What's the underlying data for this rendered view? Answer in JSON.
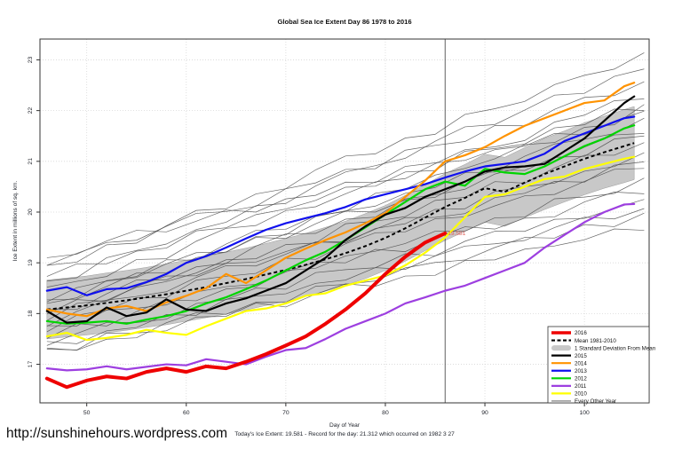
{
  "page": {
    "footer_url": "http://sunshinehours.wordpress.com"
  },
  "chart_data": {
    "type": "line",
    "title": "Global Sea Ice Extent Day 86 1978 to 2016",
    "xlabel": "Day of Year",
    "ylabel": "Ice Extent in millions of sq. km.",
    "subtitle": "Today's Ice Extent: 19.581  - Record for the day: 21.312 which occurred on 1982 3 27",
    "x_ticks": [
      50,
      60,
      70,
      80,
      90,
      100
    ],
    "y_ticks": [
      17,
      18,
      19,
      20,
      21,
      22,
      23
    ],
    "x_range": [
      45.3,
      106.5
    ],
    "y_range": [
      16.24,
      23.41
    ],
    "grid": "dotted",
    "grid_color": "#d8d8d8",
    "marker_day": 86,
    "annotation": {
      "text": "19.581",
      "day": 86,
      "value": 19.581,
      "color": "#e0605a"
    },
    "days": [
      46,
      48,
      50,
      52,
      54,
      56,
      58,
      60,
      62,
      64,
      66,
      68,
      70,
      72,
      74,
      76,
      78,
      80,
      82,
      84,
      86,
      88,
      90,
      92,
      94,
      96,
      98,
      100,
      102,
      104,
      105
    ],
    "mean": {
      "name": "Mean 1981-2010",
      "color": "#000000",
      "dashed": true,
      "values": [
        18.08,
        18.12,
        18.16,
        18.21,
        18.26,
        18.32,
        18.38,
        18.45,
        18.52,
        18.6,
        18.68,
        18.77,
        18.86,
        18.96,
        19.07,
        19.19,
        19.33,
        19.49,
        19.68,
        19.89,
        20.1,
        20.28,
        20.47,
        20.4,
        20.58,
        20.75,
        20.9,
        21.05,
        21.18,
        21.3,
        21.36
      ]
    },
    "std_dev": {
      "name": "1 Standard Deviation From Mean",
      "color": "#c8c8c8",
      "values": [
        0.58,
        0.58,
        0.58,
        0.59,
        0.59,
        0.59,
        0.6,
        0.6,
        0.6,
        0.61,
        0.61,
        0.61,
        0.62,
        0.62,
        0.63,
        0.63,
        0.64,
        0.64,
        0.65,
        0.65,
        0.66,
        0.66,
        0.67,
        0.68,
        0.69,
        0.7,
        0.7,
        0.71,
        0.71,
        0.72,
        0.72
      ]
    },
    "series": [
      {
        "name": "2016",
        "color": "#ee0000",
        "width": 4,
        "end_day": 86,
        "values": [
          16.72,
          16.55,
          16.68,
          16.76,
          16.72,
          16.85,
          16.92,
          16.85,
          16.96,
          16.92,
          17.05,
          17.2,
          17.37,
          17.55,
          17.8,
          18.08,
          18.4,
          18.78,
          19.12,
          19.4,
          19.581
        ]
      },
      {
        "name": "2015",
        "color": "#000000",
        "width": 2.2,
        "values": [
          18.05,
          17.82,
          17.85,
          18.12,
          17.95,
          18.02,
          18.28,
          18.08,
          18.05,
          18.2,
          18.3,
          18.45,
          18.6,
          18.85,
          19.1,
          19.45,
          19.72,
          19.95,
          20.08,
          20.3,
          20.45,
          20.6,
          20.8,
          20.88,
          20.9,
          20.95,
          21.2,
          21.45,
          21.8,
          22.15,
          22.28
        ]
      },
      {
        "name": "2014",
        "color": "#ff9300",
        "width": 2.2,
        "values": [
          18.08,
          18.0,
          17.95,
          18.1,
          18.15,
          18.05,
          18.22,
          18.35,
          18.5,
          18.78,
          18.6,
          18.85,
          19.1,
          19.28,
          19.45,
          19.6,
          19.78,
          19.98,
          20.3,
          20.62,
          21.0,
          21.12,
          21.28,
          21.5,
          21.7,
          21.85,
          22.0,
          22.15,
          22.2,
          22.48,
          22.55
        ]
      },
      {
        "name": "2013",
        "color": "#1010ee",
        "width": 2.2,
        "values": [
          18.45,
          18.52,
          18.36,
          18.48,
          18.5,
          18.62,
          18.78,
          19.0,
          19.13,
          19.3,
          19.48,
          19.65,
          19.78,
          19.88,
          19.98,
          20.1,
          20.25,
          20.35,
          20.45,
          20.55,
          20.68,
          20.8,
          20.9,
          20.95,
          21.0,
          21.15,
          21.4,
          21.55,
          21.7,
          21.85,
          21.88
        ]
      },
      {
        "name": "2012",
        "color": "#00d400",
        "width": 2.2,
        "values": [
          17.85,
          17.8,
          17.82,
          17.85,
          17.8,
          17.88,
          17.95,
          18.05,
          18.2,
          18.32,
          18.48,
          18.65,
          18.85,
          19.05,
          19.22,
          19.45,
          19.7,
          19.95,
          20.2,
          20.45,
          20.6,
          20.52,
          20.85,
          20.78,
          20.75,
          20.9,
          21.1,
          21.3,
          21.45,
          21.65,
          21.71
        ]
      },
      {
        "name": "2011",
        "color": "#9d3fe0",
        "width": 2.2,
        "values": [
          16.92,
          16.88,
          16.9,
          16.96,
          16.9,
          16.95,
          17.0,
          16.98,
          17.1,
          17.05,
          17.0,
          17.15,
          17.28,
          17.32,
          17.5,
          17.7,
          17.85,
          18.0,
          18.2,
          18.32,
          18.45,
          18.55,
          18.7,
          18.85,
          19.0,
          19.3,
          19.55,
          19.8,
          20.0,
          20.15,
          20.16
        ]
      },
      {
        "name": "2010",
        "color": "#ffff00",
        "width": 2.2,
        "values": [
          17.55,
          17.62,
          17.48,
          17.52,
          17.58,
          17.68,
          17.62,
          17.58,
          17.75,
          17.9,
          18.05,
          18.1,
          18.2,
          18.35,
          18.4,
          18.55,
          18.65,
          18.75,
          18.95,
          19.2,
          19.5,
          19.9,
          20.3,
          20.35,
          20.5,
          20.65,
          20.7,
          20.85,
          20.95,
          21.05,
          21.09
        ]
      }
    ],
    "other_years": {
      "name": "Every Other Year",
      "color": "#4a4a4a",
      "width": 0.7,
      "sample_days": {
        "start": 46,
        "step": 3,
        "count": 21
      },
      "wiggle_patterns": [
        [
          0,
          0.09,
          -0.06,
          0.05,
          -0.09,
          0.12,
          0,
          -0.08,
          0.07,
          -0.04,
          0.1,
          -0.1,
          0.03,
          0.11,
          -0.06,
          0.02,
          -0.09,
          0.08,
          -0.03,
          0.06,
          0
        ],
        [
          -0.07,
          0.04,
          0.1,
          -0.05,
          0.08,
          -0.1,
          0.03,
          0.12,
          -0.06,
          0.02,
          -0.09,
          0.07,
          0.13,
          -0.04,
          0.06,
          -0.08,
          0.1,
          0,
          -0.07,
          0.05,
          0.02
        ],
        [
          0.05,
          -0.08,
          0.02,
          0.1,
          -0.04,
          -0.11,
          0.06,
          0,
          0.09,
          -0.07,
          0.12,
          0.04,
          -0.06,
          0.08,
          -0.1,
          0.05,
          0.11,
          -0.03,
          0.07,
          -0.05,
          0.01
        ],
        [
          -0.04,
          0.07,
          -0.1,
          0.03,
          0.09,
          0,
          -0.07,
          0.05,
          0.12,
          -0.05,
          0.02,
          0.1,
          -0.08,
          0.04,
          -0.03,
          0.09,
          -0.06,
          0.12,
          0.05,
          -0.04,
          0.03
        ]
      ],
      "lines": [
        {
          "s": 17.25,
          "e": 19.7,
          "p": 0,
          "ph": 3
        },
        {
          "s": 17.2,
          "e": 19.95,
          "p": 1,
          "ph": 7
        },
        {
          "s": 17.45,
          "e": 20.2,
          "p": 2,
          "ph": 1
        },
        {
          "s": 17.35,
          "e": 20.05,
          "p": 3,
          "ph": 11
        },
        {
          "s": 17.55,
          "e": 20.6,
          "p": 0,
          "ph": 9
        },
        {
          "s": 17.7,
          "e": 20.4,
          "p": 1,
          "ph": 14
        },
        {
          "s": 17.75,
          "e": 20.9,
          "p": 2,
          "ph": 5
        },
        {
          "s": 17.85,
          "e": 21.1,
          "p": 3,
          "ph": 2
        },
        {
          "s": 17.95,
          "e": 21.35,
          "p": 0,
          "ph": 16
        },
        {
          "s": 18.0,
          "e": 21.6,
          "p": 1,
          "ph": 4
        },
        {
          "s": 18.05,
          "e": 20.95,
          "p": 2,
          "ph": 12
        },
        {
          "s": 18.15,
          "e": 21.8,
          "p": 3,
          "ph": 8
        },
        {
          "s": 18.2,
          "e": 22.0,
          "p": 0,
          "ph": 6
        },
        {
          "s": 18.3,
          "e": 21.5,
          "p": 1,
          "ph": 18
        },
        {
          "s": 18.4,
          "e": 22.3,
          "p": 2,
          "ph": 10
        },
        {
          "s": 18.55,
          "e": 22.85,
          "p": 3,
          "ph": 15
        },
        {
          "s": 18.7,
          "e": 22.1,
          "p": 0,
          "ph": 12
        },
        {
          "s": 18.85,
          "e": 23.1,
          "p": 1,
          "ph": 2
        },
        {
          "s": 19.0,
          "e": 22.5,
          "p": 2,
          "ph": 19
        },
        {
          "s": 19.1,
          "e": 21.9,
          "p": 3,
          "ph": 5
        }
      ]
    },
    "legend": {
      "position": "bottom-right",
      "entries": [
        {
          "label": "2016",
          "color": "#ee0000",
          "style": "thick"
        },
        {
          "label": "Mean 1981-2010",
          "color": "#000000",
          "style": "dashed"
        },
        {
          "label": "1 Standard Deviation From Mean",
          "color": "#c8c8c8",
          "style": "band"
        },
        {
          "label": "2015",
          "color": "#000000",
          "style": "line"
        },
        {
          "label": "2014",
          "color": "#ff9300",
          "style": "line"
        },
        {
          "label": "2013",
          "color": "#1010ee",
          "style": "line"
        },
        {
          "label": "2012",
          "color": "#00d400",
          "style": "line"
        },
        {
          "label": "2011",
          "color": "#9d3fe0",
          "style": "line"
        },
        {
          "label": "2010",
          "color": "#ffff00",
          "style": "line"
        },
        {
          "label": "Every Other Year",
          "color": "#4a4a4a",
          "style": "thin"
        }
      ]
    }
  }
}
